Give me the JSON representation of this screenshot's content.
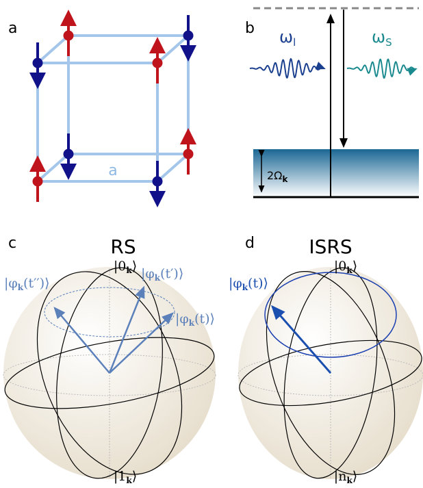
{
  "panels": {
    "a": {
      "label": "a",
      "lattice_label": "a"
    },
    "b": {
      "label": "b",
      "omega_l": {
        "symbol": "ω",
        "sub": "l"
      },
      "omega_s": {
        "symbol": "ω",
        "sub": "S"
      },
      "gap": {
        "prefix": "2Ω",
        "sub": "k"
      }
    },
    "c": {
      "label": "c",
      "title": "RS",
      "top": {
        "open": "|0",
        "sub": "k",
        "close": "⟩"
      },
      "bottom": {
        "open": "|1",
        "sub": "k",
        "close": "⟩"
      },
      "state_t2": {
        "open": "|φ",
        "sub": "k",
        "close": "(t′′)⟩"
      },
      "state_t1": {
        "open": "|φ",
        "sub": "k",
        "close": "(t′)⟩"
      },
      "state_t": {
        "open": "|φ",
        "sub": "k",
        "close": "(t)⟩"
      }
    },
    "d": {
      "label": "d",
      "title": "ISRS",
      "top": {
        "open": "|0",
        "sub": "k",
        "close": "⟩"
      },
      "bottom": {
        "open": "|n",
        "sub": "k",
        "close": "⟩"
      },
      "state_t": {
        "open": "|φ",
        "sub": "k",
        "close": "(t)⟩"
      }
    }
  }
}
